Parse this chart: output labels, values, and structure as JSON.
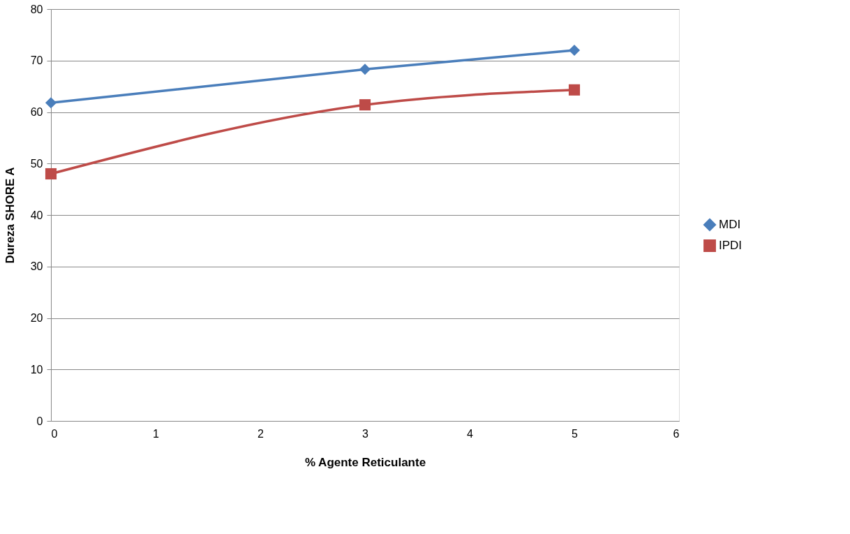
{
  "chart_data": {
    "type": "line",
    "xlabel": "%  Agente Reticulante",
    "ylabel": "Dureza SHORE  A",
    "x": [
      0,
      3,
      5
    ],
    "series": [
      {
        "name": "MDI",
        "color": "#4a7ebb",
        "marker": "diamond",
        "values": [
          61.8,
          68.3,
          72
        ]
      },
      {
        "name": "IPDI",
        "color": "#be4b48",
        "marker": "square",
        "values": [
          48,
          61.4,
          64.3
        ]
      }
    ],
    "xlim": [
      0,
      6
    ],
    "xticks": [
      0,
      1,
      2,
      3,
      4,
      5,
      6
    ],
    "ylim": [
      0,
      80
    ],
    "yticks": [
      0,
      10,
      20,
      30,
      40,
      50,
      60,
      70,
      80
    ],
    "grid": "y",
    "legend": "right",
    "line_style": "solid"
  }
}
